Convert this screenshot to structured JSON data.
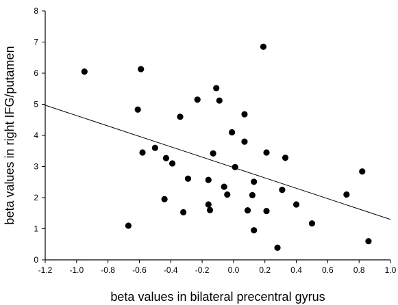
{
  "chart_data": {
    "type": "scatter",
    "title": "",
    "xlabel": "beta values in bilateral precentral gyrus",
    "ylabel": "beta values in right IFG/putamen",
    "xlim": [
      -1.2,
      1.0
    ],
    "ylim": [
      0,
      8
    ],
    "x_ticks": [
      "-1.2",
      "-1.0",
      "-0.8",
      "-0.6",
      "-0.4",
      "-0.2",
      "0.0",
      "0.2",
      "0.4",
      "0.6",
      "0.8",
      "1.0"
    ],
    "y_ticks": [
      "0",
      "1",
      "2",
      "3",
      "4",
      "5",
      "6",
      "7",
      "8"
    ],
    "x_tick_values": [
      -1.2,
      -1.0,
      -0.8,
      -0.6,
      -0.4,
      -0.2,
      0.0,
      0.2,
      0.4,
      0.6,
      0.8,
      1.0
    ],
    "y_tick_values": [
      0,
      1,
      2,
      3,
      4,
      5,
      6,
      7,
      8
    ],
    "grid": false,
    "marker_color": "#000000",
    "line_color": "#000000",
    "points": [
      {
        "x": -0.95,
        "y": 6.05
      },
      {
        "x": -0.59,
        "y": 6.13
      },
      {
        "x": -0.61,
        "y": 4.83
      },
      {
        "x": -0.67,
        "y": 1.1
      },
      {
        "x": -0.58,
        "y": 3.45
      },
      {
        "x": -0.5,
        "y": 3.6
      },
      {
        "x": -0.43,
        "y": 3.27
      },
      {
        "x": -0.39,
        "y": 3.1
      },
      {
        "x": -0.44,
        "y": 1.95
      },
      {
        "x": -0.34,
        "y": 4.6
      },
      {
        "x": -0.32,
        "y": 1.53
      },
      {
        "x": -0.29,
        "y": 2.61
      },
      {
        "x": -0.23,
        "y": 5.15
      },
      {
        "x": -0.16,
        "y": 2.57
      },
      {
        "x": -0.16,
        "y": 1.78
      },
      {
        "x": -0.15,
        "y": 1.6
      },
      {
        "x": -0.13,
        "y": 3.42
      },
      {
        "x": -0.11,
        "y": 5.52
      },
      {
        "x": -0.09,
        "y": 5.12
      },
      {
        "x": -0.06,
        "y": 2.35
      },
      {
        "x": -0.04,
        "y": 2.1
      },
      {
        "x": -0.01,
        "y": 4.1
      },
      {
        "x": 0.01,
        "y": 2.98
      },
      {
        "x": 0.07,
        "y": 4.68
      },
      {
        "x": 0.07,
        "y": 3.8
      },
      {
        "x": 0.09,
        "y": 1.59
      },
      {
        "x": 0.12,
        "y": 2.08
      },
      {
        "x": 0.13,
        "y": 2.51
      },
      {
        "x": 0.13,
        "y": 0.95
      },
      {
        "x": 0.19,
        "y": 6.85
      },
      {
        "x": 0.21,
        "y": 3.45
      },
      {
        "x": 0.21,
        "y": 1.57
      },
      {
        "x": 0.28,
        "y": 0.39
      },
      {
        "x": 0.31,
        "y": 2.25
      },
      {
        "x": 0.33,
        "y": 3.28
      },
      {
        "x": 0.4,
        "y": 1.78
      },
      {
        "x": 0.5,
        "y": 1.17
      },
      {
        "x": 0.72,
        "y": 2.1
      },
      {
        "x": 0.82,
        "y": 2.84
      },
      {
        "x": 0.86,
        "y": 0.6
      }
    ],
    "regression_line": {
      "x": [
        -1.2,
        1.0
      ],
      "y": [
        4.97,
        1.3
      ]
    }
  }
}
